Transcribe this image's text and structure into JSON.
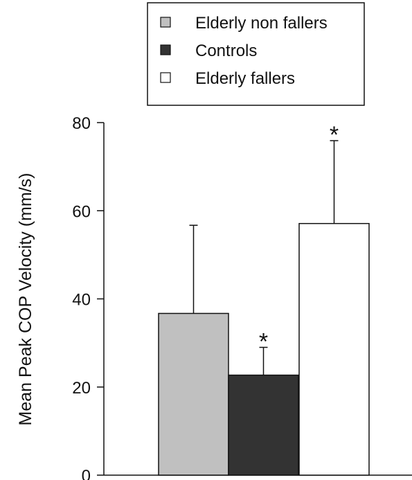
{
  "chart_data": {
    "type": "bar",
    "ylabel": "Mean Peak COP Velocity (mm/s)",
    "xlabel": "",
    "ylim": [
      0,
      80
    ],
    "yticks": [
      "0",
      "20",
      "40",
      "60",
      "80"
    ],
    "grid": false,
    "legend_position": "top",
    "series": [
      {
        "name": "Elderly non fallers",
        "value": 36.7,
        "error": 20.0,
        "significance": "",
        "color": "#c0c0c0"
      },
      {
        "name": "Controls",
        "value": 22.7,
        "error": 6.3,
        "significance": "*",
        "color": "#333333"
      },
      {
        "name": "Elderly fallers",
        "value": 57.1,
        "error": 18.8,
        "significance": "*",
        "color": "#ffffff"
      }
    ]
  }
}
